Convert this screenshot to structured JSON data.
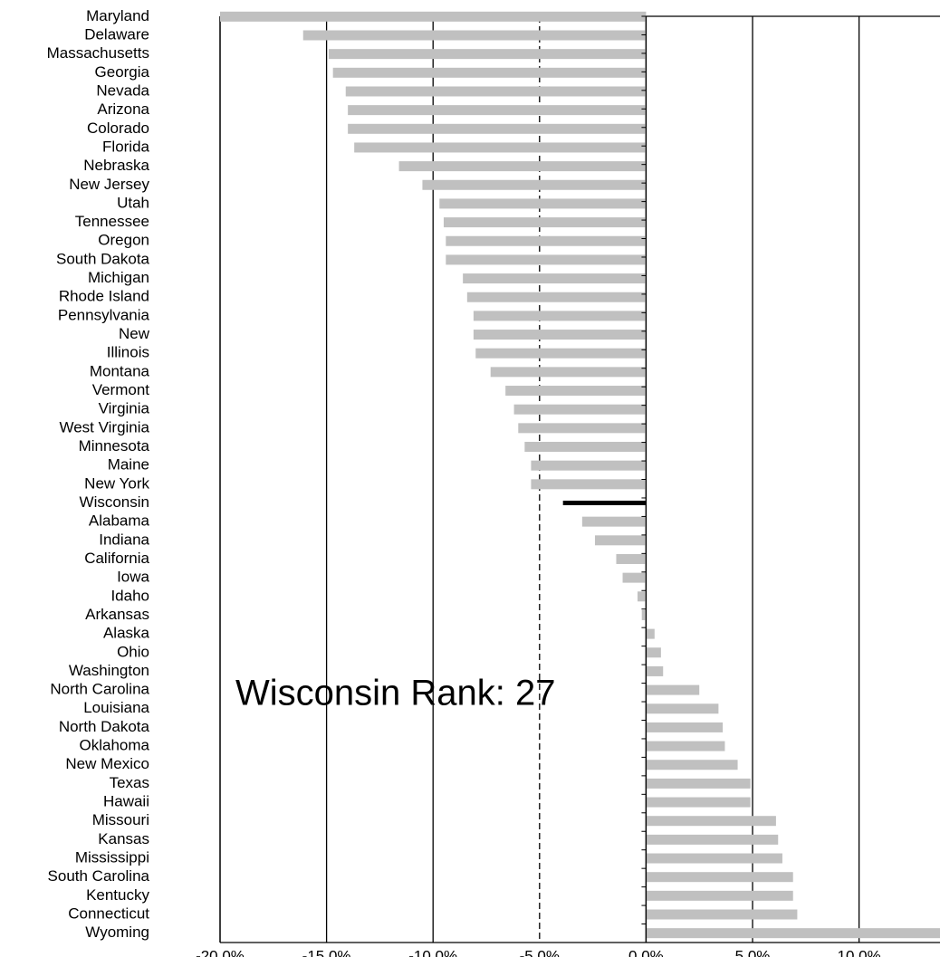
{
  "chart_data": {
    "type": "hbar",
    "annotation": "Wisconsin Rank: 27",
    "categories": [
      "Maryland",
      "Delaware",
      "Massachusetts",
      "Georgia",
      "Nevada",
      "Arizona",
      "Colorado",
      "Florida",
      "Nebraska",
      "New Jersey",
      "Utah",
      "Tennessee",
      "Oregon",
      "South Dakota",
      "Michigan",
      "Rhode Island",
      "Pennsylvania",
      "New",
      "Illinois",
      "Montana",
      "Vermont",
      "Virginia",
      "West Virginia",
      "Minnesota",
      "Maine",
      "New York",
      "Wisconsin",
      "Alabama",
      "Indiana",
      "California",
      "Iowa",
      "Idaho",
      "Arkansas",
      "Alaska",
      "Ohio",
      "Washington",
      "North Carolina",
      "Louisiana",
      "North Dakota",
      "Oklahoma",
      "New Mexico",
      "Texas",
      "Hawaii",
      "Missouri",
      "Kansas",
      "Mississippi",
      "South Carolina",
      "Kentucky",
      "Connecticut",
      "Wyoming"
    ],
    "values": [
      -20.0,
      -16.1,
      -14.9,
      -14.7,
      -14.1,
      -14.0,
      -14.0,
      -13.7,
      -11.6,
      -10.5,
      -9.7,
      -9.5,
      -9.4,
      -9.4,
      -8.6,
      -8.4,
      -8.1,
      -8.1,
      -8.0,
      -7.3,
      -6.6,
      -6.2,
      -6.0,
      -5.7,
      -5.4,
      -5.4,
      -3.9,
      -3.0,
      -2.4,
      -1.4,
      -1.1,
      -0.4,
      -0.2,
      0.4,
      0.7,
      0.8,
      2.5,
      3.4,
      3.6,
      3.7,
      4.3,
      4.9,
      4.9,
      6.1,
      6.2,
      6.4,
      6.9,
      6.9,
      7.1,
      13.8
    ],
    "color": "#c0c0c0",
    "highlight": {
      "index": 26,
      "color": "#000000"
    },
    "xlim": [
      -20,
      13.8
    ],
    "xticks": [
      {
        "value": -20,
        "label": "-20.0%"
      },
      {
        "value": -15,
        "label": "-15.0%"
      },
      {
        "value": -10,
        "label": "-10.0%"
      },
      {
        "value": -5,
        "label": "-5.0%"
      },
      {
        "value": 0,
        "label": "0.0%"
      },
      {
        "value": 5,
        "label": "5.0%"
      },
      {
        "value": 10,
        "label": "10.0%"
      }
    ],
    "dashed_grid": [
      -5
    ],
    "grid": true
  }
}
